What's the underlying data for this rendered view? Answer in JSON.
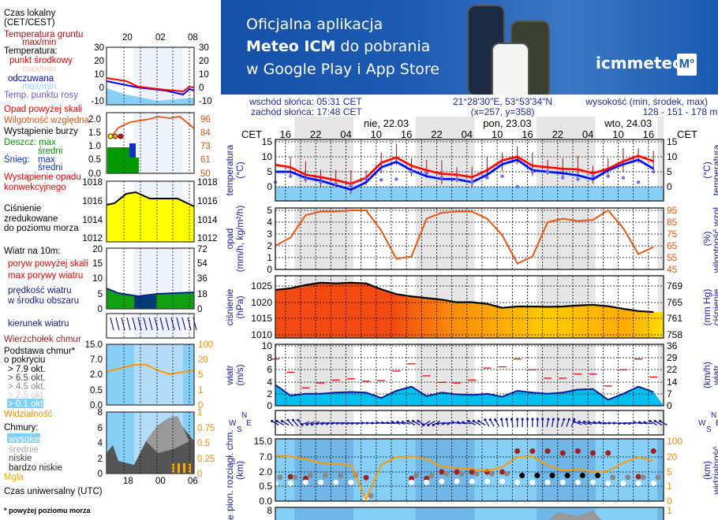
{
  "banner": {
    "line1": "Oficjalna aplikacja",
    "line2_bold": "Meteo ICM",
    "line2_rest": " do pobrania",
    "line3": "w Google Play i App Store",
    "logo_text": "icmmeteo",
    "logo_badge": "M°"
  },
  "legend": {
    "local_time_1": "Czas lokalny",
    "local_time_2": "(CET/CEST)",
    "local_hours": [
      "20",
      "02",
      "08"
    ],
    "ground_temp_1": "Temperatura gruntu",
    "ground_temp_2": "max/min",
    "temperature": "Temperatura:",
    "mid_point": "punkt środkowy",
    "maxmin_1": "max/min",
    "feels": "odczuwana",
    "maxmin_2": "max/min",
    "dew_point": "Temp. punktu rosy",
    "temp_axis": [
      "30",
      "20",
      "10",
      "0",
      "-10"
    ],
    "precip_over": "Opad powyżej skali",
    "humidity": "Wilgotność względna",
    "storm": "Wystąpienie burzy",
    "rain_max": "Deszcz: max",
    "rain_avg": "średni",
    "snow_label": "Śnieg:",
    "snow_max": "max",
    "snow_avg": "średni",
    "convective_1": "Wystąpienie opadu",
    "convective_2": "konwekcyjnego",
    "precip_axis": [
      "2.0",
      "1.5",
      "1.0",
      "0.5",
      "0.0"
    ],
    "humidity_axis": [
      "96",
      "84",
      "73",
      "61",
      "50"
    ],
    "pressure_axis": [
      "1018",
      "1016",
      "1014",
      "1012"
    ],
    "pressure_1": "Ciśnienie",
    "pressure_2": "zredukowane",
    "pressure_3": "do poziomu morza",
    "wind_title": "Wiatr na 10m:",
    "gust_over": "poryw powyżej skali",
    "gust_max": "max porywy wiatru",
    "wind_speed_1": "prędkość wiatru",
    "wind_speed_2": "w środku obszaru",
    "wind_axis": [
      "20",
      "15",
      "10",
      "5",
      "0"
    ],
    "wind_axis_kmh": [
      "72",
      "54",
      "36",
      "18",
      "0"
    ],
    "wind_dir": "kierunek wiatru",
    "cloud_top": "Wierzchołek chmur",
    "cloud_base_1": "Podstawa chmur*",
    "cloud_base_2": "o pokryciu",
    "okt": [
      "> 7.9 okt.",
      "> 6.5 okt.",
      "> 4.5 okt.",
      "> 2.5 okt.",
      "> 0.1 okt."
    ],
    "cloud_axis": [
      "15.0",
      "7.0",
      "2.0",
      "0.5",
      "0.0"
    ],
    "vis_axis": [
      "100",
      "20",
      "5",
      "1",
      "0"
    ],
    "visibility": "Widzialność",
    "clouds": "Chmury:",
    "high": "wysokie",
    "mid": "średnie",
    "low": "niskie",
    "very_low": "bardzo niskie",
    "fog": "Mgła",
    "clouds_axis": [
      "8",
      "6",
      "4",
      "2",
      "0"
    ],
    "clouds_axis_r": [
      "1",
      "0.75",
      "0.5",
      "0.25",
      "0"
    ],
    "utc_hours": [
      "18",
      "00",
      "06"
    ],
    "utc": "Czas uniwersalny (UTC)",
    "footnote": "* powyżej poziomu morza"
  },
  "header": {
    "sunrise": "wschód słońca: 05:31 CET",
    "sunset": "zachód słońca: 17:48 CET",
    "coords": "21°28'30\"E, 53°53'34\"N",
    "grid": "(x=257,  y=358)",
    "elev_title": "wysokość (min, środek, max)",
    "elev": "128 - 151 - 178 m",
    "cet": "CET",
    "dates": [
      "nie, 22.03",
      "pon, 23.03",
      "wto, 24.03"
    ],
    "hours": [
      "16",
      "22",
      "04",
      "10",
      "16",
      "22",
      "04",
      "10",
      "16",
      "22",
      "04",
      "10",
      "16"
    ]
  },
  "axes": {
    "temp_left": "temperatura",
    "temp_left_unit": "(°C)",
    "temp_right": "temperatura",
    "temp_right_unit": "(°C)",
    "precip_left": "opad",
    "precip_left_unit": "(mm/h, kg/m²/h)",
    "hum_right": "wilgotność wzgl.",
    "hum_right_unit": "(%)",
    "press_left": "ciśnienie",
    "press_left_unit": "(hPa)",
    "press_right": "ciśnienie",
    "press_right_unit": "(mm Hg)",
    "wind_left": "wiatr",
    "wind_left_unit": "(m/s)",
    "wind_right": "wiatr",
    "wind_right_unit": "(km/h)",
    "cloud_left": "pion. rozciągł. chm.",
    "cloud_left_unit": "(km)",
    "vis_right": "widzialność",
    "vis_right_unit": "(km)",
    "rose": [
      "W",
      "S",
      "N",
      "E"
    ],
    "bottom_left_partial": "e",
    "bottom_axis": "8",
    "bottom_axis_r": "1"
  },
  "chart_data": {
    "type": "line",
    "x_hours_from": "sob 14:00 CET",
    "x_step_hours": 3,
    "grid": true,
    "panels": [
      {
        "name": "temperatura",
        "ylim": [
          -5,
          15
        ],
        "ticks": [
          "15",
          "10",
          "5",
          "0"
        ],
        "right_ticks": [
          "15",
          "10",
          "5",
          "0"
        ],
        "series": [
          {
            "key": "temp",
            "color": "#ff0000",
            "values": [
              7.3,
              6.5,
              4,
              3.2,
              2.2,
              1,
              3,
              8,
              9.8,
              7,
              5.5,
              4.3,
              4,
              3.2,
              5.5,
              8.8,
              10,
              7,
              6.5,
              6,
              5.8,
              4.5,
              6,
              8.5,
              10.3,
              8.5
            ]
          },
          {
            "key": "feels",
            "color": "#0000ff",
            "values": [
              5,
              5,
              3,
              2,
              0.5,
              -1,
              1.5,
              6.5,
              8.3,
              5.5,
              3.5,
              2.6,
              2.5,
              1.5,
              4,
              7.5,
              9,
              5.5,
              5,
              4.5,
              3.8,
              2.5,
              5.5,
              7.5,
              9,
              6
            ]
          },
          {
            "key": "dew",
            "color": "#6666ee",
            "values": [
              1.5,
              3.5,
              2.5,
              1.5,
              1,
              0.5,
              2.5,
              2.3,
              2.5,
              5,
              4.5,
              3,
              2.5,
              1.5,
              3,
              3.5,
              0,
              5,
              5,
              3,
              2.5,
              3.5,
              3.5,
              3,
              1.5,
              5
            ]
          }
        ]
      },
      {
        "name": "opad / wilgotność",
        "ylim": [
          0,
          5
        ],
        "ticks": [
          "5",
          "4",
          "3",
          "2",
          "1",
          "0"
        ],
        "right_ticks": [
          "95",
          "85",
          "75",
          "65",
          "55",
          "45"
        ],
        "series": [
          {
            "key": "humidity",
            "color": "#ee5511",
            "unit": "%",
            "values": [
              65,
              72,
              91,
              94,
              94,
              95,
              95,
              78,
              54,
              56,
              88,
              93,
              94,
              94,
              88,
              74,
              50,
              56,
              85,
              88,
              86,
              87,
              95,
              80,
              58,
              64
            ]
          }
        ]
      },
      {
        "name": "ciśnienie",
        "ylim": [
          1009,
          1027
        ],
        "ticks": [
          "1025",
          "1020",
          "1015",
          "1010"
        ],
        "right_ticks": [
          "769",
          "765",
          "761",
          "758"
        ],
        "series": [
          {
            "key": "pressure",
            "color": "#000000",
            "values": [
              1023.8,
              1024.3,
              1025.3,
              1026,
              1025.8,
              1026,
              1025.8,
              1024,
              1022.5,
              1021.8,
              1021.3,
              1020.8,
              1020,
              1020,
              1019.5,
              1018.3,
              1018.7,
              1018.7,
              1018.6,
              1018.7,
              1019,
              1019.2,
              1018.8,
              1018,
              1017.3,
              1017
            ]
          }
        ]
      },
      {
        "name": "wiatr",
        "ylim": [
          0,
          10
        ],
        "ticks": [
          "10",
          "8",
          "6",
          "4",
          "2",
          "0"
        ],
        "right_ticks": [
          "36",
          "29",
          "22",
          "14",
          "7",
          "0"
        ],
        "series": [
          {
            "key": "speed",
            "color": "#0020a0",
            "values": [
              3.5,
              1.7,
              2,
              2,
              2.2,
              2.3,
              2.2,
              1.3,
              2.5,
              3.2,
              1.6,
              2.2,
              1.9,
              1.8,
              2,
              1.5,
              2.5,
              2.2,
              2,
              2.2,
              2.7,
              2.8,
              1,
              2,
              3.2,
              2.3
            ]
          },
          {
            "key": "gust",
            "color": "#ff0000",
            "values": [
              7.8,
              5.6,
              3,
              3.8,
              4.3,
              4.5,
              4.1,
              4.2,
              5.8,
              7,
              5,
              3.9,
              3.8,
              4.3,
              6.3,
              6.5,
              7.8,
              6,
              4.6,
              4.6,
              5.3,
              5.3,
              3.3,
              6,
              7.8,
              4.8
            ]
          }
        ]
      },
      {
        "name": "kierunek wiatru",
        "series": [
          {
            "key": "dir_deg",
            "values": [
              300,
              320,
              250,
              260,
              265,
              265,
              270,
              275,
              285,
              300,
              240,
              260,
              280,
              300,
              330,
              350,
              0,
              0,
              10,
              20,
              290,
              280,
              270,
              265,
              280,
              300
            ]
          }
        ]
      },
      {
        "name": "chmury / widzialność",
        "ticks": [
          "15.0",
          "7.0",
          "2.0",
          "0.5",
          "0.0"
        ],
        "right_ticks": [
          "100",
          "20",
          "5",
          "1",
          "0"
        ],
        "series": [
          {
            "key": "visibility_km",
            "color": "#ff9900",
            "values": [
              26,
              22,
              18,
              14,
              13,
              12,
              0.1,
              12,
              20,
              22,
              18,
              10,
              9,
              8,
              6,
              10,
              20,
              23,
              12,
              6.5,
              8,
              5,
              6,
              14,
              20,
              16
            ]
          },
          {
            "key": "cloud_top_km",
            "color": "#a02020",
            "values": [
              null,
              1.5,
              1.3,
              null,
              null,
              null,
              1.4,
              null,
              null,
              1.3,
              1.3,
              2,
              2,
              2,
              2,
              2,
              10,
              10,
              10,
              9,
              10,
              9,
              9,
              null,
              1.5,
              10
            ]
          },
          {
            "key": "cloud_base_km",
            "color": "#ffffff",
            "values": [
              0.8,
              0.8,
              0.9,
              0.9,
              0.9,
              0.9,
              0.1,
              null,
              null,
              0.9,
              0.9,
              1,
              1,
              1,
              1,
              1,
              0.9,
              0.9,
              0.9,
              0.9,
              0.9,
              0.9,
              0.8,
              0.8,
              0.8,
              0.8
            ]
          }
        ]
      }
    ]
  }
}
